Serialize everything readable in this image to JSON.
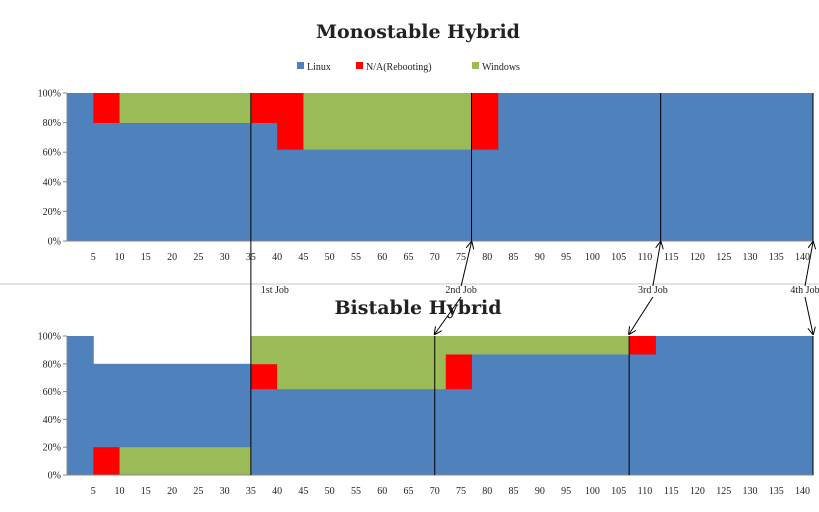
{
  "chart_data": [
    {
      "type": "area",
      "title": "Monostable Hybrid",
      "legend": [
        {
          "name": "Linux",
          "color": "#4f81bd"
        },
        {
          "name": "N/A(Rebooting)",
          "color": "#ff0000"
        },
        {
          "name": "Windows",
          "color": "#9bbb59"
        }
      ],
      "x_ticks": [
        "5",
        "10",
        "15",
        "20",
        "25",
        "30",
        "35",
        "40",
        "45",
        "50",
        "55",
        "60",
        "65",
        "70",
        "75",
        "80",
        "85",
        "90",
        "95",
        "100",
        "105",
        "110",
        "115",
        "120",
        "125",
        "130",
        "135",
        "140"
      ],
      "y_ticks": [
        "0%",
        "20%",
        "40%",
        "60%",
        "80%",
        "100%"
      ],
      "xlim": [
        0,
        142
      ],
      "ylim": [
        0,
        100
      ],
      "series": [
        {
          "name": "Linux",
          "color": "#4f81bd",
          "segments": [
            {
              "x0": 0,
              "x1": 5,
              "value": 100
            },
            {
              "x0": 5,
              "x1": 10,
              "value": 80
            },
            {
              "x0": 10,
              "x1": 35,
              "value": 80
            },
            {
              "x0": 35,
              "x1": 40,
              "value": 80
            },
            {
              "x0": 40,
              "x1": 45,
              "value": 62
            },
            {
              "x0": 45,
              "x1": 77,
              "value": 62
            },
            {
              "x0": 77,
              "x1": 82,
              "value": 62
            },
            {
              "x0": 82,
              "x1": 142,
              "value": 100
            }
          ]
        },
        {
          "name": "N/A(Rebooting)",
          "color": "#ff0000",
          "segments": [
            {
              "x0": 5,
              "x1": 10,
              "value": 20
            },
            {
              "x0": 35,
              "x1": 40,
              "value": 20
            },
            {
              "x0": 40,
              "x1": 45,
              "value": 38
            },
            {
              "x0": 77,
              "x1": 82,
              "value": 38
            }
          ]
        },
        {
          "name": "Windows",
          "color": "#9bbb59",
          "segments": [
            {
              "x0": 10,
              "x1": 35,
              "value": 20
            },
            {
              "x0": 45,
              "x1": 77,
              "value": 38
            }
          ]
        }
      ],
      "job_markers": [
        35,
        77,
        113,
        142
      ]
    },
    {
      "type": "area",
      "title": "Bistable Hybrid",
      "x_ticks": [
        "5",
        "10",
        "15",
        "20",
        "25",
        "30",
        "35",
        "40",
        "45",
        "50",
        "55",
        "60",
        "65",
        "70",
        "75",
        "80",
        "85",
        "90",
        "95",
        "100",
        "105",
        "110",
        "115",
        "120",
        "125",
        "130",
        "135",
        "140"
      ],
      "y_ticks": [
        "0%",
        "20%",
        "40%",
        "60%",
        "80%",
        "100%"
      ],
      "xlim": [
        0,
        142
      ],
      "ylim": [
        0,
        100
      ],
      "series": [
        {
          "name": "Linux",
          "color": "#4f81bd",
          "segments": [
            {
              "x0": 0,
              "x1": 5,
              "value": 100
            },
            {
              "x0": 5,
              "x1": 35,
              "value": 80
            },
            {
              "x0": 35,
              "x1": 40,
              "value": 62
            },
            {
              "x0": 40,
              "x1": 72,
              "value": 62
            },
            {
              "x0": 72,
              "x1": 77,
              "value": 62
            },
            {
              "x0": 77,
              "x1": 107,
              "value": 87
            },
            {
              "x0": 107,
              "x1": 112,
              "value": 87
            },
            {
              "x0": 112,
              "x1": 142,
              "value": 100
            }
          ]
        },
        {
          "name": "N/A(Rebooting)",
          "color": "#ff0000",
          "segments": [
            {
              "x0": 5,
              "x1": 10,
              "value": 20
            },
            {
              "x0": 35,
              "x1": 40,
              "value": 18
            },
            {
              "x0": 72,
              "x1": 77,
              "value": 25
            },
            {
              "x0": 107,
              "x1": 112,
              "value": 13
            }
          ]
        },
        {
          "name": "Windows",
          "color": "#9bbb59",
          "segments": [
            {
              "x0": 10,
              "x1": 35,
              "value": 20
            },
            {
              "x0": 35,
              "x1": 40,
              "value": 20
            },
            {
              "x0": 40,
              "x1": 72,
              "value": 38
            },
            {
              "x0": 72,
              "x1": 77,
              "value": 13
            },
            {
              "x0": 77,
              "x1": 107,
              "value": 13
            }
          ]
        }
      ],
      "job_markers": [
        35,
        70,
        107,
        142
      ]
    }
  ],
  "job_labels": [
    "1st Job",
    "2nd Job",
    "3rd Job",
    "4th Job"
  ]
}
